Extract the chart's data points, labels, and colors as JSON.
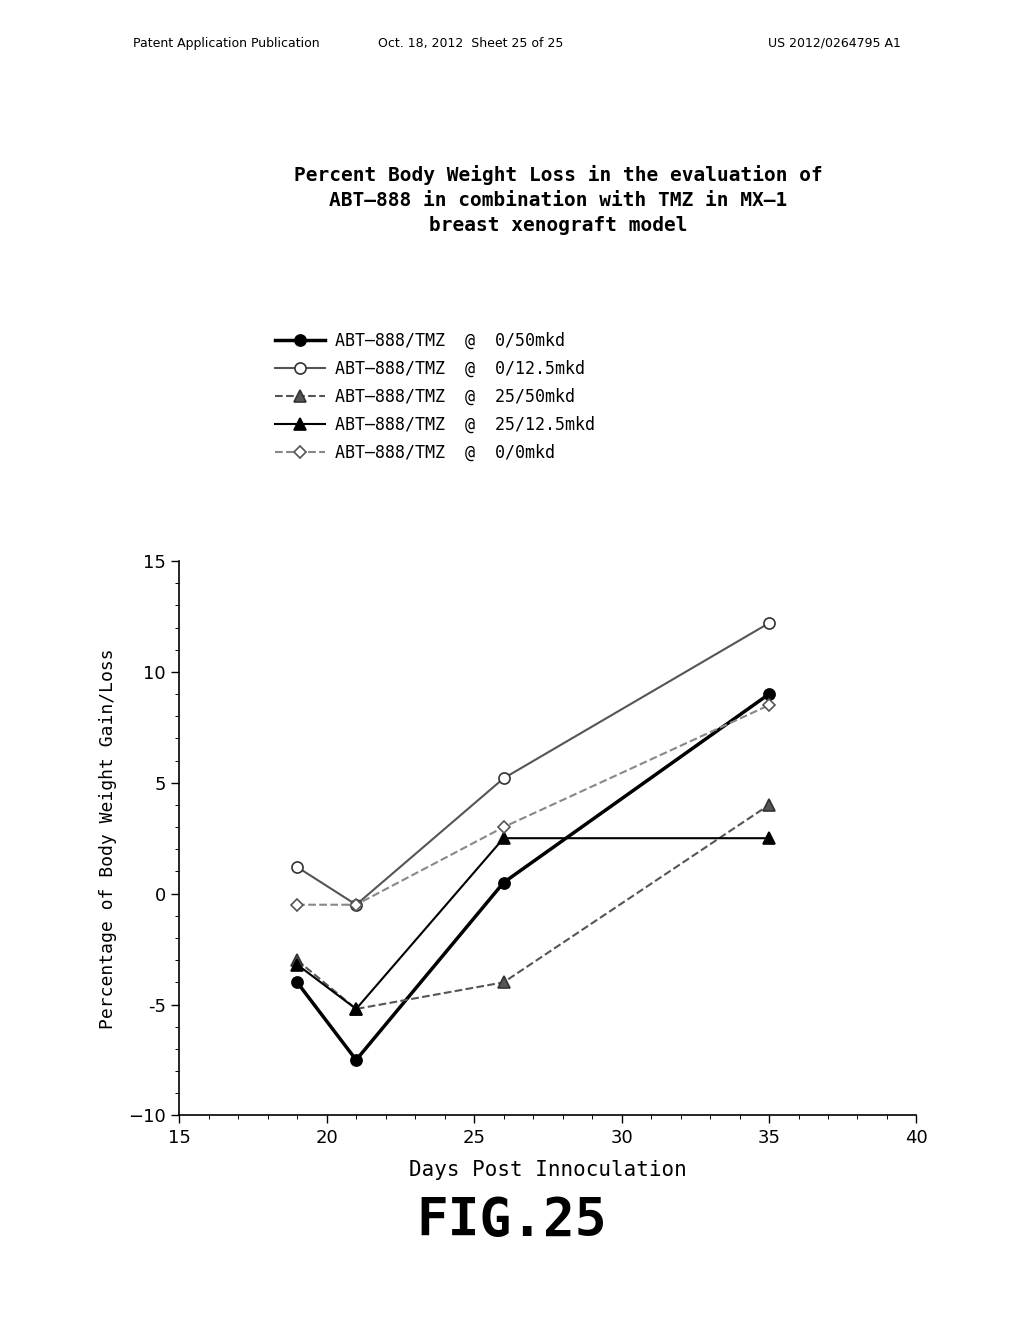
{
  "title_line1": "Percent Body Weight Loss in the evaluation of",
  "title_line2": "ABT–888 in combination with TMZ in MX–1",
  "title_line3": "breast xenograft model",
  "xlabel": "Days Post Innoculation",
  "ylabel": "Percentage of Body Weight Gain/Loss",
  "xlim": [
    15,
    40
  ],
  "ylim": [
    -10,
    15
  ],
  "xticks": [
    15,
    20,
    25,
    30,
    35,
    40
  ],
  "yticks": [
    -10,
    -5,
    0,
    5,
    10,
    15
  ],
  "series": [
    {
      "label": "ABT–888/TMZ  @  0/50mkd",
      "x": [
        19,
        21,
        26,
        35
      ],
      "y": [
        -4.0,
        -7.5,
        0.5,
        9.0
      ],
      "color": "#000000",
      "linestyle": "-",
      "linewidth": 2.5,
      "marker": "o",
      "markersize": 8,
      "markerfacecolor": "#000000",
      "markeredgecolor": "#000000"
    },
    {
      "label": "ABT–888/TMZ  @  0/12.5mkd",
      "x": [
        19,
        21,
        26,
        35
      ],
      "y": [
        1.2,
        -0.5,
        5.2,
        12.2
      ],
      "color": "#555555",
      "linestyle": "-",
      "linewidth": 1.5,
      "marker": "o",
      "markersize": 8,
      "markerfacecolor": "#ffffff",
      "markeredgecolor": "#333333"
    },
    {
      "label": "ABT–888/TMZ  @  25/50mkd",
      "x": [
        19,
        21,
        26,
        35
      ],
      "y": [
        -3.0,
        -5.2,
        -4.0,
        4.0
      ],
      "color": "#555555",
      "linestyle": "--",
      "linewidth": 1.5,
      "marker": "^",
      "markersize": 8,
      "markerfacecolor": "#555555",
      "markeredgecolor": "#333333"
    },
    {
      "label": "ABT–888/TMZ  @  25/12.5mkd",
      "x": [
        19,
        21,
        26,
        35
      ],
      "y": [
        -3.2,
        -5.2,
        2.5,
        2.5
      ],
      "color": "#000000",
      "linestyle": "-",
      "linewidth": 1.5,
      "marker": "^",
      "markersize": 8,
      "markerfacecolor": "#000000",
      "markeredgecolor": "#000000"
    },
    {
      "label": "ABT–888/TMZ  @  0/0mkd",
      "x": [
        19,
        21,
        26,
        35
      ],
      "y": [
        -0.5,
        -0.5,
        3.0,
        8.5
      ],
      "color": "#888888",
      "linestyle": "--",
      "linewidth": 1.5,
      "marker": "D",
      "markersize": 6,
      "markerfacecolor": "#ffffff",
      "markeredgecolor": "#555555"
    }
  ],
  "fig_label": "FIG.25",
  "header_left": "Patent Application Publication",
  "header_mid": "Oct. 18, 2012  Sheet 25 of 25",
  "header_right": "US 2012/0264795 A1",
  "background_color": "#ffffff",
  "title_fontsize": 14,
  "legend_fontsize": 12,
  "axis_fontsize": 13,
  "xlabel_fontsize": 15,
  "ylabel_fontsize": 13
}
